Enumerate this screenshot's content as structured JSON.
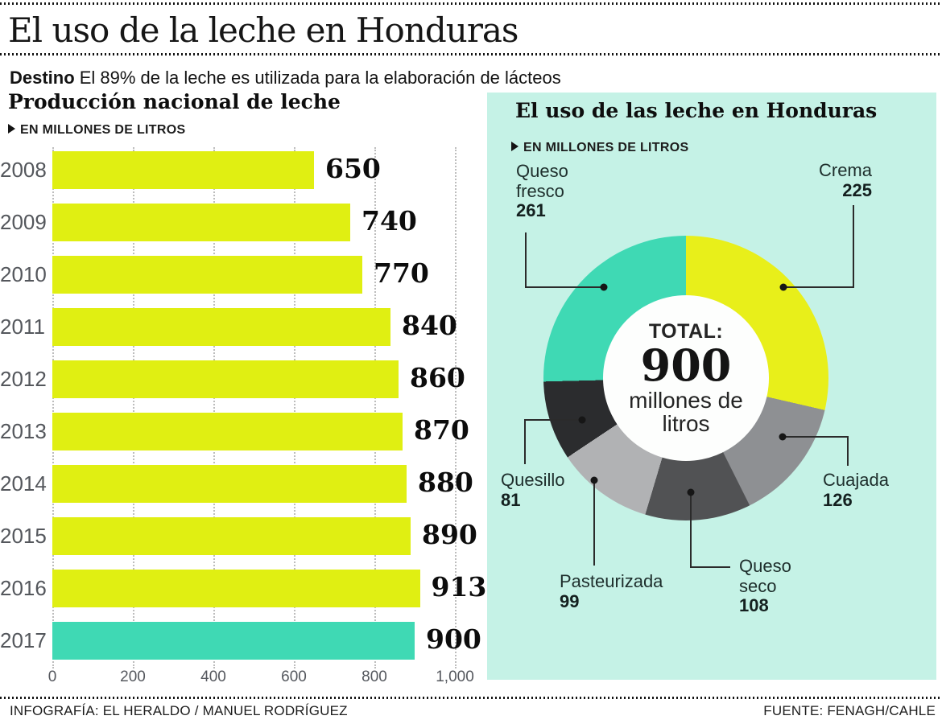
{
  "header": {
    "title": "El uso de la leche en Honduras",
    "kicker_bold": "Destino",
    "kicker_rest": "El 89% de la leche es utilizada para la elaboración de lácteos"
  },
  "footer": {
    "left": "INFOGRAFÍA: EL HERALDO / MANUEL RODRÍGUEZ",
    "right": "FUENTE: FENAGH/CAHLE"
  },
  "colors": {
    "bar_yellow": "#e0ef12",
    "teal": "#3fd9b4",
    "panel_background": "#c5f2e6",
    "grid_dotted": "#bdbdbd",
    "leader_line": "#2b2b2b"
  },
  "chart_data": [
    {
      "type": "bar",
      "orientation": "horizontal",
      "title": "Producción nacional de leche",
      "unit": "EN MILLONES DE LITROS",
      "categories": [
        "2008",
        "2009",
        "2010",
        "2011",
        "2012",
        "2013",
        "2014",
        "2015",
        "2016",
        "2017"
      ],
      "values": [
        650,
        740,
        770,
        840,
        860,
        870,
        880,
        890,
        913,
        900
      ],
      "value_labels": [
        "650",
        "740",
        "770",
        "840",
        "860",
        "870",
        "880",
        "890",
        "913",
        "900"
      ],
      "xlim": [
        0,
        1000
      ],
      "x_ticks": [
        "0",
        "200",
        "400",
        "600",
        "800",
        "1,000"
      ],
      "grid": "dotted-vertical",
      "bar_color": "#e0ef12",
      "highlight_index": 9,
      "highlight_color": "#3fd9b4"
    },
    {
      "type": "pie",
      "subtype": "donut",
      "title": "El uso de las leche en Honduras",
      "unit": "EN MILLONES DE LITROS",
      "total": 900,
      "center_label": {
        "prefix": "TOTAL:",
        "value": "900",
        "suffix_line1": "millones de",
        "suffix_line2": "litros"
      },
      "start_angle_deg": 13,
      "segments": [
        {
          "name": "Crema",
          "value": 225,
          "color": "#e8ef1a"
        },
        {
          "name": "Cuajada",
          "value": 126,
          "color": "#8e9093"
        },
        {
          "name": "Queso seco",
          "value": 108,
          "color": "#515254"
        },
        {
          "name": "Pasteurizada",
          "value": 99,
          "color": "#b1b2b4"
        },
        {
          "name": "Quesillo",
          "value": 81,
          "color": "#2b2c2e"
        },
        {
          "name": "Queso fresco",
          "value": 261,
          "color": "#3fd9b4"
        }
      ]
    }
  ]
}
